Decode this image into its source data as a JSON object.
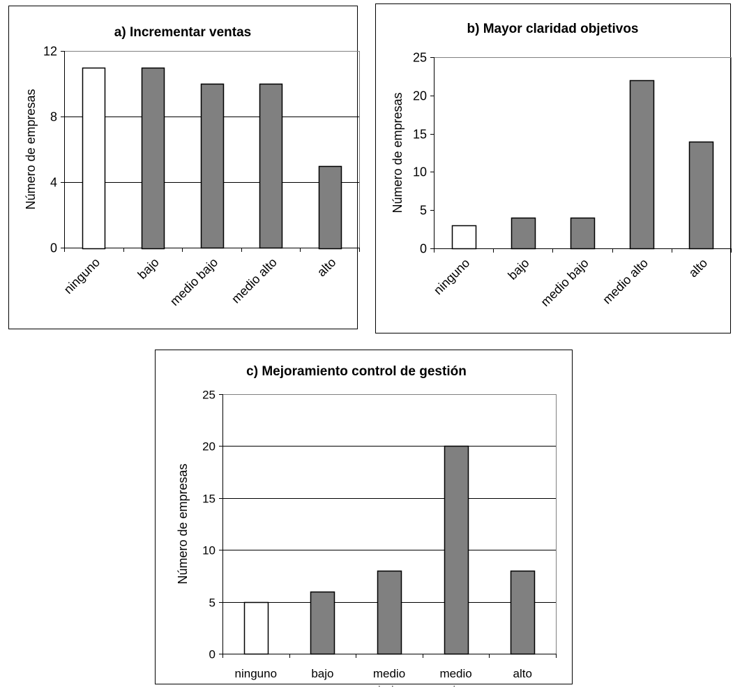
{
  "colors": {
    "highlight": "#ffffff",
    "bar": "#808080",
    "stroke": "#000000",
    "grid": "#000000",
    "plot_frame": "#808080"
  },
  "chart_data": [
    {
      "type": "bar",
      "title": "a) Incrementar ventas",
      "ylabel": "Número de empresas",
      "xlabel": "",
      "categories": [
        "ninguno",
        "bajo",
        "medio bajo",
        "medio alto",
        "alto"
      ],
      "values": [
        11,
        11,
        10,
        10,
        5
      ],
      "ylim": [
        0,
        12
      ],
      "yticks": [
        0,
        4,
        8,
        12
      ],
      "grid": true,
      "highlight_index": 0
    },
    {
      "type": "bar",
      "title": "b) Mayor claridad objetivos",
      "ylabel": "Número de empresas",
      "xlabel": "",
      "categories": [
        "ninguno",
        "bajo",
        "medio bajo",
        "medio alto",
        "alto"
      ],
      "values": [
        3,
        4,
        4,
        22,
        14
      ],
      "ylim": [
        0,
        25
      ],
      "yticks": [
        0,
        5,
        10,
        15,
        20,
        25
      ],
      "grid": false,
      "highlight_index": 0
    },
    {
      "type": "bar",
      "title": "c) Mejoramiento control de gestión",
      "ylabel": "Número de empresas",
      "xlabel": "",
      "categories": [
        [
          "ninguno"
        ],
        [
          "bajo"
        ],
        [
          "medio",
          "bajo"
        ],
        [
          "medio",
          "alto"
        ],
        [
          "alto"
        ]
      ],
      "values": [
        5,
        6,
        8,
        20,
        8
      ],
      "ylim": [
        0,
        25
      ],
      "yticks": [
        0,
        5,
        10,
        15,
        20,
        25
      ],
      "grid": true,
      "highlight_index": 0
    }
  ]
}
